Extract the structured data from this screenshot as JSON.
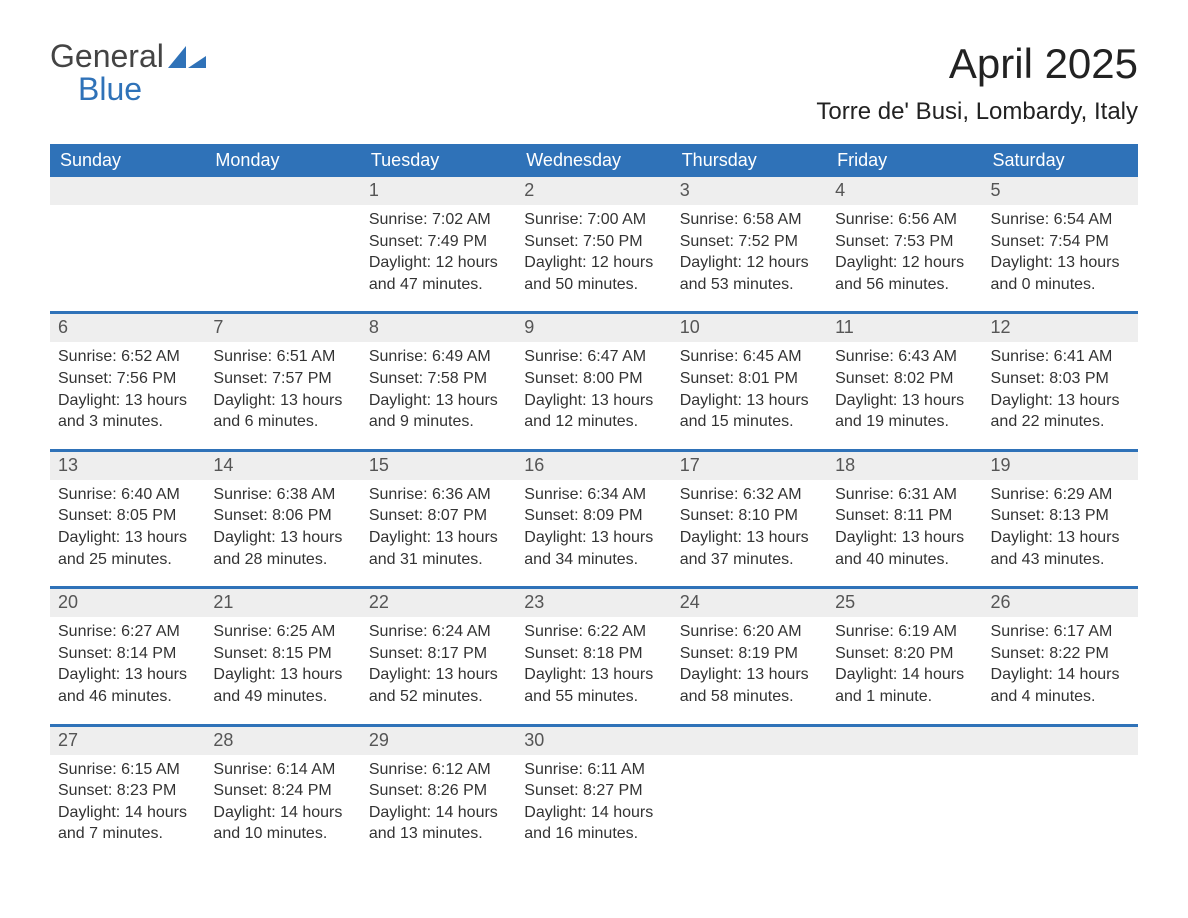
{
  "colors": {
    "header_bg": "#2f72b8",
    "header_text": "#ffffff",
    "daynum_bg": "#eeeeee",
    "body_text": "#333333",
    "logo_blue": "#2f72b8",
    "logo_gray": "#444444",
    "week_border": "#2f72b8",
    "page_bg": "#ffffff"
  },
  "logo": {
    "line1": "General",
    "line2": "Blue"
  },
  "title": "April 2025",
  "location": "Torre de' Busi, Lombardy, Italy",
  "weekdays": [
    "Sunday",
    "Monday",
    "Tuesday",
    "Wednesday",
    "Thursday",
    "Friday",
    "Saturday"
  ],
  "weeks": [
    [
      {
        "num": "",
        "sunrise": "",
        "sunset": "",
        "daylight": ""
      },
      {
        "num": "",
        "sunrise": "",
        "sunset": "",
        "daylight": ""
      },
      {
        "num": "1",
        "sunrise": "Sunrise: 7:02 AM",
        "sunset": "Sunset: 7:49 PM",
        "daylight": "Daylight: 12 hours and 47 minutes."
      },
      {
        "num": "2",
        "sunrise": "Sunrise: 7:00 AM",
        "sunset": "Sunset: 7:50 PM",
        "daylight": "Daylight: 12 hours and 50 minutes."
      },
      {
        "num": "3",
        "sunrise": "Sunrise: 6:58 AM",
        "sunset": "Sunset: 7:52 PM",
        "daylight": "Daylight: 12 hours and 53 minutes."
      },
      {
        "num": "4",
        "sunrise": "Sunrise: 6:56 AM",
        "sunset": "Sunset: 7:53 PM",
        "daylight": "Daylight: 12 hours and 56 minutes."
      },
      {
        "num": "5",
        "sunrise": "Sunrise: 6:54 AM",
        "sunset": "Sunset: 7:54 PM",
        "daylight": "Daylight: 13 hours and 0 minutes."
      }
    ],
    [
      {
        "num": "6",
        "sunrise": "Sunrise: 6:52 AM",
        "sunset": "Sunset: 7:56 PM",
        "daylight": "Daylight: 13 hours and 3 minutes."
      },
      {
        "num": "7",
        "sunrise": "Sunrise: 6:51 AM",
        "sunset": "Sunset: 7:57 PM",
        "daylight": "Daylight: 13 hours and 6 minutes."
      },
      {
        "num": "8",
        "sunrise": "Sunrise: 6:49 AM",
        "sunset": "Sunset: 7:58 PM",
        "daylight": "Daylight: 13 hours and 9 minutes."
      },
      {
        "num": "9",
        "sunrise": "Sunrise: 6:47 AM",
        "sunset": "Sunset: 8:00 PM",
        "daylight": "Daylight: 13 hours and 12 minutes."
      },
      {
        "num": "10",
        "sunrise": "Sunrise: 6:45 AM",
        "sunset": "Sunset: 8:01 PM",
        "daylight": "Daylight: 13 hours and 15 minutes."
      },
      {
        "num": "11",
        "sunrise": "Sunrise: 6:43 AM",
        "sunset": "Sunset: 8:02 PM",
        "daylight": "Daylight: 13 hours and 19 minutes."
      },
      {
        "num": "12",
        "sunrise": "Sunrise: 6:41 AM",
        "sunset": "Sunset: 8:03 PM",
        "daylight": "Daylight: 13 hours and 22 minutes."
      }
    ],
    [
      {
        "num": "13",
        "sunrise": "Sunrise: 6:40 AM",
        "sunset": "Sunset: 8:05 PM",
        "daylight": "Daylight: 13 hours and 25 minutes."
      },
      {
        "num": "14",
        "sunrise": "Sunrise: 6:38 AM",
        "sunset": "Sunset: 8:06 PM",
        "daylight": "Daylight: 13 hours and 28 minutes."
      },
      {
        "num": "15",
        "sunrise": "Sunrise: 6:36 AM",
        "sunset": "Sunset: 8:07 PM",
        "daylight": "Daylight: 13 hours and 31 minutes."
      },
      {
        "num": "16",
        "sunrise": "Sunrise: 6:34 AM",
        "sunset": "Sunset: 8:09 PM",
        "daylight": "Daylight: 13 hours and 34 minutes."
      },
      {
        "num": "17",
        "sunrise": "Sunrise: 6:32 AM",
        "sunset": "Sunset: 8:10 PM",
        "daylight": "Daylight: 13 hours and 37 minutes."
      },
      {
        "num": "18",
        "sunrise": "Sunrise: 6:31 AM",
        "sunset": "Sunset: 8:11 PM",
        "daylight": "Daylight: 13 hours and 40 minutes."
      },
      {
        "num": "19",
        "sunrise": "Sunrise: 6:29 AM",
        "sunset": "Sunset: 8:13 PM",
        "daylight": "Daylight: 13 hours and 43 minutes."
      }
    ],
    [
      {
        "num": "20",
        "sunrise": "Sunrise: 6:27 AM",
        "sunset": "Sunset: 8:14 PM",
        "daylight": "Daylight: 13 hours and 46 minutes."
      },
      {
        "num": "21",
        "sunrise": "Sunrise: 6:25 AM",
        "sunset": "Sunset: 8:15 PM",
        "daylight": "Daylight: 13 hours and 49 minutes."
      },
      {
        "num": "22",
        "sunrise": "Sunrise: 6:24 AM",
        "sunset": "Sunset: 8:17 PM",
        "daylight": "Daylight: 13 hours and 52 minutes."
      },
      {
        "num": "23",
        "sunrise": "Sunrise: 6:22 AM",
        "sunset": "Sunset: 8:18 PM",
        "daylight": "Daylight: 13 hours and 55 minutes."
      },
      {
        "num": "24",
        "sunrise": "Sunrise: 6:20 AM",
        "sunset": "Sunset: 8:19 PM",
        "daylight": "Daylight: 13 hours and 58 minutes."
      },
      {
        "num": "25",
        "sunrise": "Sunrise: 6:19 AM",
        "sunset": "Sunset: 8:20 PM",
        "daylight": "Daylight: 14 hours and 1 minute."
      },
      {
        "num": "26",
        "sunrise": "Sunrise: 6:17 AM",
        "sunset": "Sunset: 8:22 PM",
        "daylight": "Daylight: 14 hours and 4 minutes."
      }
    ],
    [
      {
        "num": "27",
        "sunrise": "Sunrise: 6:15 AM",
        "sunset": "Sunset: 8:23 PM",
        "daylight": "Daylight: 14 hours and 7 minutes."
      },
      {
        "num": "28",
        "sunrise": "Sunrise: 6:14 AM",
        "sunset": "Sunset: 8:24 PM",
        "daylight": "Daylight: 14 hours and 10 minutes."
      },
      {
        "num": "29",
        "sunrise": "Sunrise: 6:12 AM",
        "sunset": "Sunset: 8:26 PM",
        "daylight": "Daylight: 14 hours and 13 minutes."
      },
      {
        "num": "30",
        "sunrise": "Sunrise: 6:11 AM",
        "sunset": "Sunset: 8:27 PM",
        "daylight": "Daylight: 14 hours and 16 minutes."
      },
      {
        "num": "",
        "sunrise": "",
        "sunset": "",
        "daylight": ""
      },
      {
        "num": "",
        "sunrise": "",
        "sunset": "",
        "daylight": ""
      },
      {
        "num": "",
        "sunrise": "",
        "sunset": "",
        "daylight": ""
      }
    ]
  ]
}
